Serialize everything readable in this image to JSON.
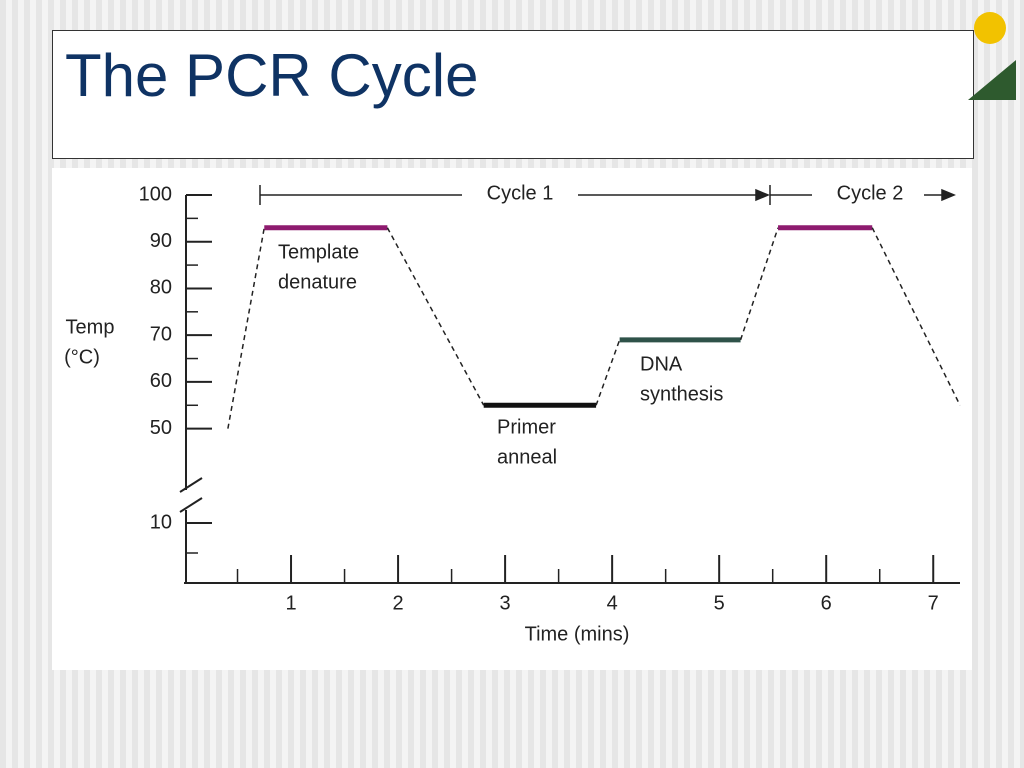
{
  "chart_data": {
    "type": "line",
    "title": "The PCR Cycle",
    "x": [
      0.41,
      0.75,
      1.9,
      2.8,
      3.85,
      4.07,
      5.2,
      5.55,
      6.43,
      7.25
    ],
    "values": [
      50,
      93,
      93,
      55,
      55,
      69,
      69,
      93,
      93,
      55
    ],
    "segment_styles": [
      "dashed",
      "#8e1b6f",
      "dashed",
      "#111111",
      "dashed",
      "#2f5249",
      "dashed",
      "#8e1b6f",
      "dashed"
    ],
    "annotations": [
      [
        "Template",
        "denature"
      ],
      [
        "Primer",
        "anneal"
      ],
      [
        "DNA",
        "synthesis"
      ]
    ],
    "cycles": [
      "Cycle 1",
      "Cycle 2"
    ],
    "xlabel": "Time (mins)",
    "ylabel": [
      "Temp",
      "(°C)"
    ],
    "xlim": [
      0,
      7.25
    ],
    "xticks": [
      1,
      2,
      3,
      4,
      5,
      6,
      7
    ],
    "ylim": [
      0,
      100
    ],
    "yticks": [
      10,
      50,
      60,
      70,
      80,
      90,
      100
    ],
    "y_break": [
      20,
      45
    ]
  }
}
